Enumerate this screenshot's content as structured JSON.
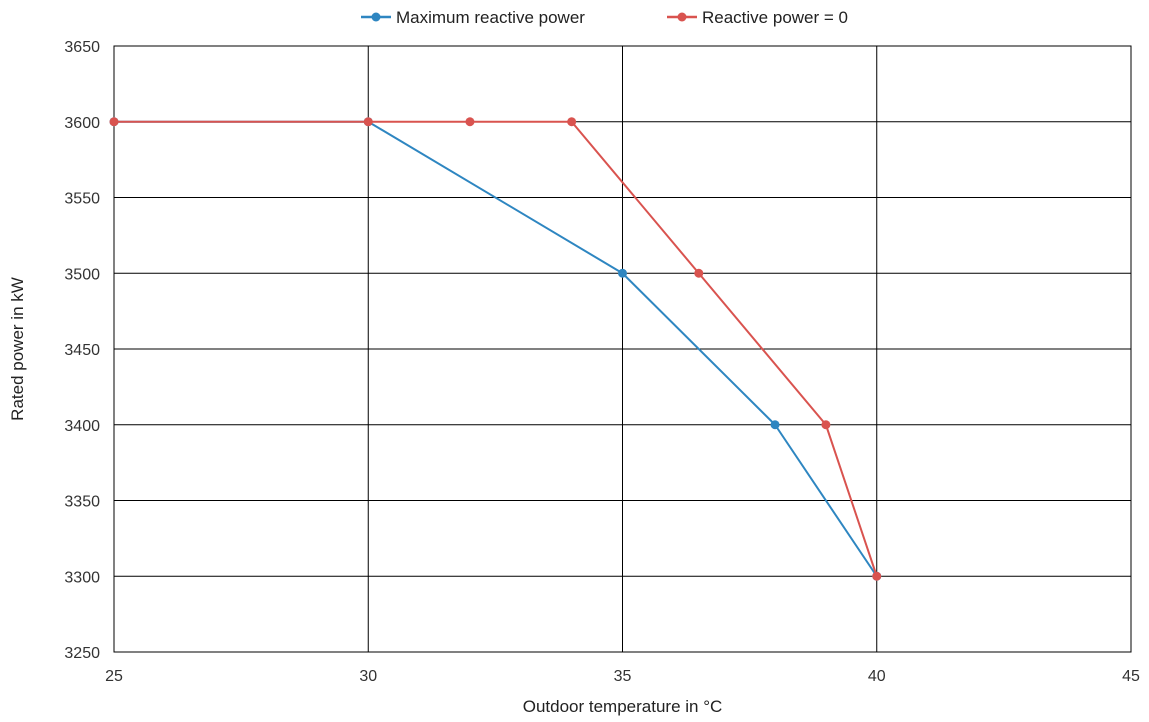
{
  "chart_data": {
    "type": "line",
    "title": "",
    "xlabel": "Outdoor temperature in °C",
    "ylabel": "Rated power in kW",
    "xlim": [
      25,
      45
    ],
    "ylim": [
      3250,
      3650
    ],
    "x_ticks": [
      25,
      30,
      35,
      40,
      45
    ],
    "y_ticks": [
      3250,
      3300,
      3350,
      3400,
      3450,
      3500,
      3550,
      3600,
      3650
    ],
    "grid": true,
    "legend_position": "top-center",
    "series": [
      {
        "name": "Maximum reactive power",
        "color": "#2e86c1",
        "points": [
          {
            "x": 25,
            "y": 3600
          },
          {
            "x": 30,
            "y": 3600
          },
          {
            "x": 35,
            "y": 3500
          },
          {
            "x": 38,
            "y": 3400
          },
          {
            "x": 40,
            "y": 3300
          }
        ]
      },
      {
        "name": "Reactive power = 0",
        "color": "#d9534f",
        "points": [
          {
            "x": 25,
            "y": 3600
          },
          {
            "x": 30,
            "y": 3600
          },
          {
            "x": 32,
            "y": 3600
          },
          {
            "x": 34,
            "y": 3600
          },
          {
            "x": 36.5,
            "y": 3500
          },
          {
            "x": 39,
            "y": 3400
          },
          {
            "x": 40,
            "y": 3300
          }
        ]
      }
    ]
  }
}
